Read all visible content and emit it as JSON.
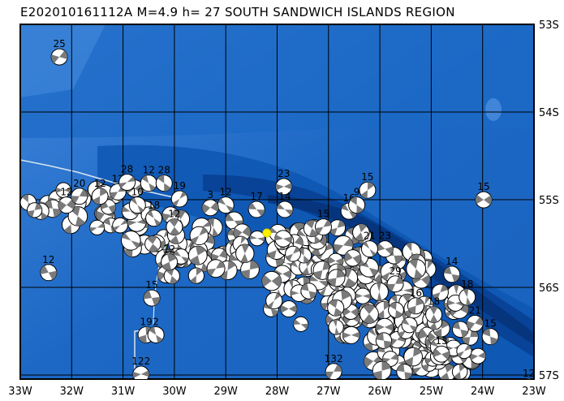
{
  "title": "E202010161112A M=4.9 h= 27 SOUTH SANDWICH ISLANDS REGION",
  "map": {
    "lon_range": [
      -33,
      -23
    ],
    "lat_range": [
      -53,
      -57
    ],
    "lon_ticks": [
      "33W",
      "32W",
      "31W",
      "30W",
      "29W",
      "28W",
      "27W",
      "26W",
      "25W",
      "24W",
      "23W"
    ],
    "lat_ticks": [
      "53S",
      "54S",
      "55S",
      "56S",
      "57S"
    ],
    "grid": true,
    "colors": {
      "ocean_shallow": "#3a7fd8",
      "ocean_mid": "#1f6cc8",
      "ocean_deep": "#0a4fa8",
      "trench": "#06357e",
      "grid": "#000000",
      "track": "#d8e4f0",
      "epicenter": "#ffee00",
      "mechanism_fill": "#7a7a7a"
    },
    "epicenter": {
      "lon": -28.2,
      "lat": -55.38
    },
    "events": [
      {
        "lon": -32.24,
        "lat": -53.26,
        "depth": "25"
      },
      {
        "lon": -32.45,
        "lat": -55.72,
        "depth": "12"
      },
      {
        "lon": -32.1,
        "lat": -54.95,
        "depth": "12"
      },
      {
        "lon": -31.85,
        "lat": -54.85,
        "depth": "20"
      },
      {
        "lon": -31.45,
        "lat": -54.85,
        "depth": "12"
      },
      {
        "lon": -31.1,
        "lat": -54.8,
        "depth": "12"
      },
      {
        "lon": -30.92,
        "lat": -54.69,
        "depth": "28"
      },
      {
        "lon": -30.5,
        "lat": -54.7,
        "depth": "12"
      },
      {
        "lon": -30.2,
        "lat": -54.7,
        "depth": "28"
      },
      {
        "lon": -30.72,
        "lat": -54.95,
        "depth": "10"
      },
      {
        "lon": -30.4,
        "lat": -55.1,
        "depth": "18"
      },
      {
        "lon": -29.9,
        "lat": -54.88,
        "depth": "19"
      },
      {
        "lon": -30.0,
        "lat": -55.2,
        "depth": "12"
      },
      {
        "lon": -29.0,
        "lat": -54.95,
        "depth": "12"
      },
      {
        "lon": -29.3,
        "lat": -54.98,
        "depth": "3"
      },
      {
        "lon": -27.87,
        "lat": -54.74,
        "depth": "23"
      },
      {
        "lon": -28.4,
        "lat": -55.0,
        "depth": "17"
      },
      {
        "lon": -27.85,
        "lat": -55.0,
        "depth": "14"
      },
      {
        "lon": -26.24,
        "lat": -54.78,
        "depth": "15"
      },
      {
        "lon": -26.6,
        "lat": -55.02,
        "depth": "16"
      },
      {
        "lon": -26.45,
        "lat": -54.95,
        "depth": "9"
      },
      {
        "lon": -27.1,
        "lat": -55.2,
        "depth": "15"
      },
      {
        "lon": -23.98,
        "lat": -54.89,
        "depth": "15"
      },
      {
        "lon": -25.9,
        "lat": -55.45,
        "depth": "23"
      },
      {
        "lon": -26.2,
        "lat": -55.45,
        "depth": "21"
      },
      {
        "lon": -25.7,
        "lat": -55.85,
        "depth": "29"
      },
      {
        "lon": -24.6,
        "lat": -55.74,
        "depth": "14"
      },
      {
        "lon": -24.3,
        "lat": -56.0,
        "depth": "18"
      },
      {
        "lon": -24.15,
        "lat": -56.3,
        "depth": "21"
      },
      {
        "lon": -23.85,
        "lat": -56.45,
        "depth": "15"
      },
      {
        "lon": -24.95,
        "lat": -56.2,
        "depth": "18"
      },
      {
        "lon": -25.3,
        "lat": -56.1,
        "depth": "16"
      },
      {
        "lon": -24.8,
        "lat": -56.65,
        "depth": "13"
      },
      {
        "lon": -23.1,
        "lat": -57.02,
        "depth": "12"
      },
      {
        "lon": -30.44,
        "lat": -56.01,
        "depth": "15"
      },
      {
        "lon": -30.55,
        "lat": -56.43,
        "depth": "19"
      },
      {
        "lon": -30.36,
        "lat": -56.43,
        "depth": "2"
      },
      {
        "lon": -30.65,
        "lat": -56.88,
        "depth": "122"
      },
      {
        "lon": -30.1,
        "lat": -55.6,
        "depth": "12"
      },
      {
        "lon": -26.9,
        "lat": -56.85,
        "depth": "132"
      }
    ]
  }
}
